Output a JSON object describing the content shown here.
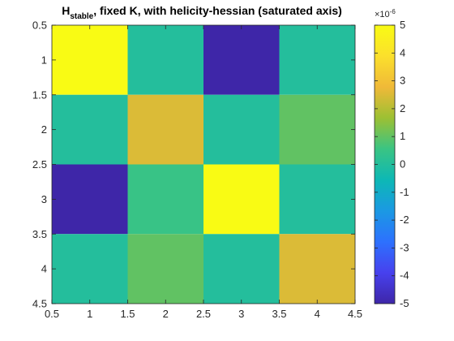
{
  "chart_data": {
    "type": "heatmap",
    "title": {
      "main": "H",
      "subscript": "stable",
      "rest": ", fixed K, with helicity-hessian (saturated axis)"
    },
    "x_ticks": [
      "0.5",
      "1",
      "1.5",
      "2",
      "2.5",
      "3",
      "3.5",
      "4",
      "4.5"
    ],
    "y_ticks": [
      "0.5",
      "1",
      "1.5",
      "2",
      "2.5",
      "3",
      "3.5",
      "4",
      "4.5"
    ],
    "xlim": [
      0.5,
      4.5
    ],
    "ylim": [
      0.5,
      4.5
    ],
    "y_direction": "reverse",
    "rows": [
      1,
      2,
      3,
      4
    ],
    "cols": [
      1,
      2,
      3,
      4
    ],
    "values": [
      [
        5,
        0,
        -5,
        0
      ],
      [
        0,
        2.5,
        0,
        1
      ],
      [
        -5,
        0.5,
        5,
        0
      ],
      [
        0,
        1,
        0,
        2.5
      ]
    ],
    "value_scale": "1e-6",
    "clim": [
      -5,
      5
    ],
    "colorbar": {
      "ticks": [
        "5",
        "4",
        "3",
        "2",
        "1",
        "0",
        "-1",
        "-2",
        "-3",
        "-4",
        "-5"
      ],
      "tick_values": [
        5,
        4,
        3,
        2,
        1,
        0,
        -1,
        -2,
        -3,
        -4,
        -5
      ],
      "exponent_base": "×10",
      "exponent": "-6"
    },
    "colormap": "parula",
    "colormap_stops": [
      "#3e26a8",
      "#4741ee",
      "#2d71fe",
      "#1b99e3",
      "#0db8b5",
      "#3ac483",
      "#9cc033",
      "#f0b938",
      "#fbe02c",
      "#f9fb14"
    ],
    "grid": false
  }
}
